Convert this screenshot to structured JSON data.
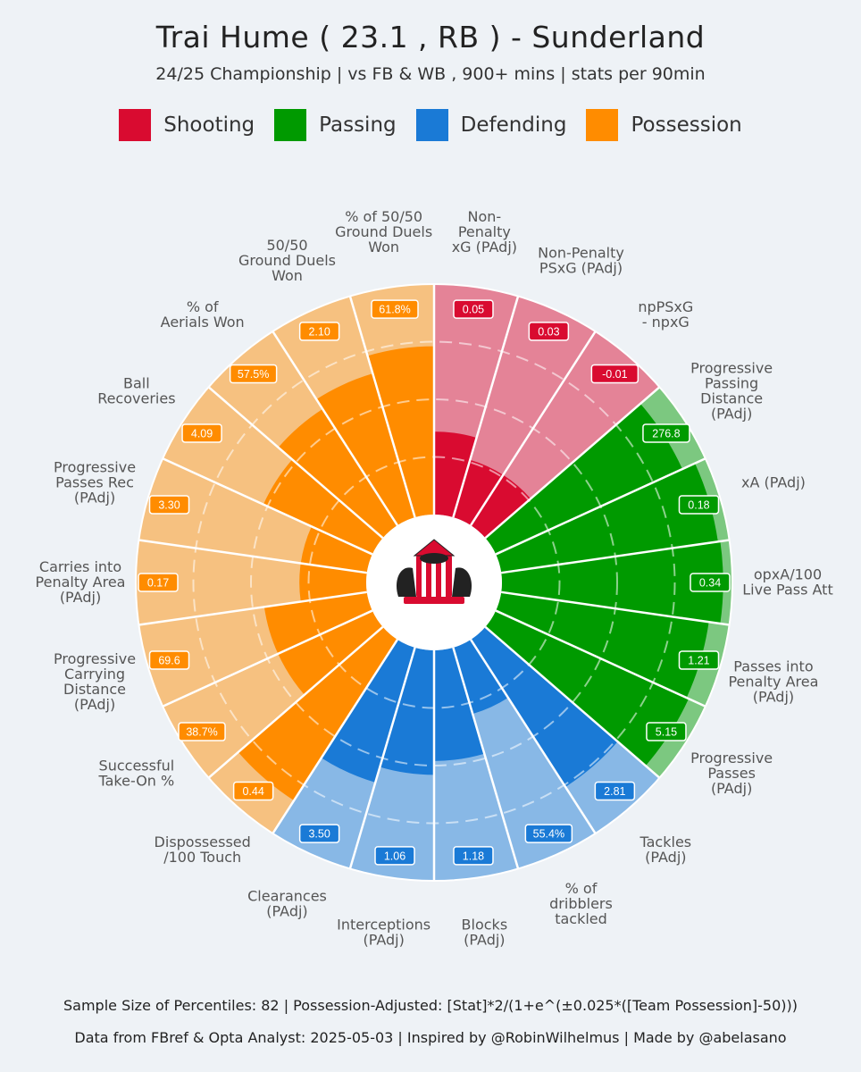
{
  "header": {
    "title": "Trai Hume  ( 23.1 , RB ) - Sunderland",
    "subtitle": "24/25 Championship | vs FB & WB , 900+ mins | stats per 90min"
  },
  "legend": [
    {
      "label": "Shooting",
      "color": "#d90b30"
    },
    {
      "label": "Passing",
      "color": "#009a00"
    },
    {
      "label": "Defending",
      "color": "#1a7ad6"
    },
    {
      "label": "Possession",
      "color": "#ff8c00"
    }
  ],
  "chart_data": {
    "type": "polar-bar",
    "center_logo": "sunderland-crest",
    "percentile_range": [
      0,
      100
    ],
    "series": [
      {
        "label": "Non-\nPenalty\nxG (PAdj)",
        "value_label": "0.05",
        "percentile": 36,
        "group": "Shooting"
      },
      {
        "label": "Non-Penalty\nPSxG (PAdj)",
        "value_label": "0.03",
        "percentile": 26,
        "group": "Shooting"
      },
      {
        "label": "npPSxG\n- npxG",
        "value_label": "-0.01",
        "percentile": 26,
        "group": "Shooting"
      },
      {
        "label": "Progressive\nPassing\nDistance\n(PAdj)",
        "value_label": "276.8",
        "percentile": 89,
        "group": "Passing"
      },
      {
        "label": "xA (PAdj)",
        "value_label": "0.18",
        "percentile": 95,
        "group": "Passing"
      },
      {
        "label": "opxA/100\nLive Pass Att",
        "value_label": "0.34",
        "percentile": 96,
        "group": "Passing"
      },
      {
        "label": "Passes into\nPenalty Area\n(PAdj)",
        "value_label": "1.21",
        "percentile": 91,
        "group": "Passing"
      },
      {
        "label": "Progressive\nPasses\n(PAdj)",
        "value_label": "5.15",
        "percentile": 92,
        "group": "Passing"
      },
      {
        "label": "Tackles\n(PAdj)",
        "value_label": "2.81",
        "percentile": 76,
        "group": "Defending"
      },
      {
        "label": "% of\ndribblers\ntackled",
        "value_label": "55.4%",
        "percentile": 30,
        "group": "Defending"
      },
      {
        "label": "Blocks\n(PAdj)",
        "value_label": "1.18",
        "percentile": 48,
        "group": "Defending"
      },
      {
        "label": "Interceptions\n(PAdj)",
        "value_label": "1.06",
        "percentile": 54,
        "group": "Defending"
      },
      {
        "label": "Clearances\n(PAdj)",
        "value_label": "3.50",
        "percentile": 61,
        "group": "Defending"
      },
      {
        "label": "Dispossessed\n/100 Touch",
        "value_label": "0.44",
        "percentile": 83,
        "group": "Possession"
      },
      {
        "label": "Successful\nTake-On %",
        "value_label": "38.7%",
        "percentile": 45,
        "group": "Possession"
      },
      {
        "label": "Progressive\nCarrying\nDistance\n(PAdj)",
        "value_label": "69.6",
        "percentile": 45,
        "group": "Possession"
      },
      {
        "label": "Carries into\nPenalty Area\n(PAdj)",
        "value_label": "0.17",
        "percentile": 29,
        "group": "Possession"
      },
      {
        "label": "Progressive\nPasses Rec\n(PAdj)",
        "value_label": "3.30",
        "percentile": 29,
        "group": "Possession"
      },
      {
        "label": "Ball\nRecoveries",
        "value_label": "4.09",
        "percentile": 52,
        "group": "Possession"
      },
      {
        "label": "% of\nAerials Won",
        "value_label": "57.5%",
        "percentile": 60,
        "group": "Possession"
      },
      {
        "label": "50/50\nGround Duels\nWon",
        "value_label": "2.10",
        "percentile": 65,
        "group": "Possession"
      },
      {
        "label": "% of 50/50\nGround Duels\nWon",
        "value_label": "61.8%",
        "percentile": 73,
        "group": "Possession"
      }
    ]
  },
  "footer": {
    "line1": "Sample Size of Percentiles:  82   |  Possession-Adjusted: [Stat]*2/(1+e^(±0.025*([Team Possession]-50)))",
    "line2": "Data from FBref & Opta Analyst: 2025-05-03  |  Inspired by @RobinWilhelmus  |  Made by @abelasano"
  }
}
